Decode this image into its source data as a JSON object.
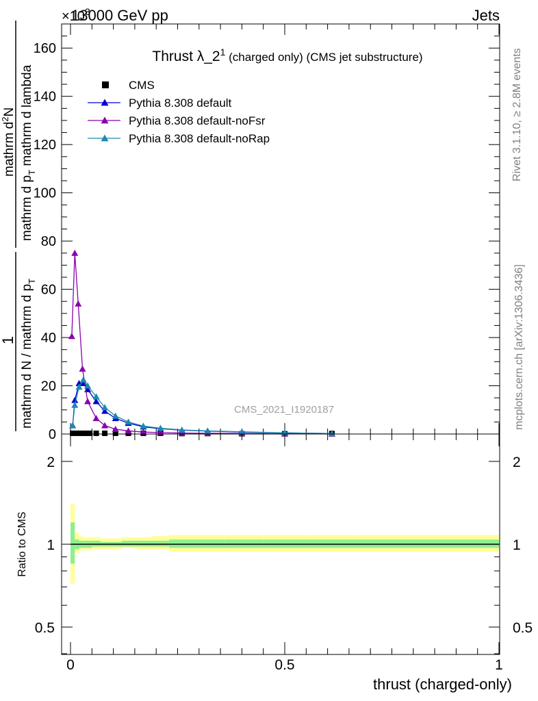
{
  "header": {
    "energy": "13000 GeV pp",
    "process": "Jets",
    "exponent": "×10",
    "exponent_power": "3"
  },
  "side_texts": {
    "rivet": "Rivet 3.1.10, ≥ 2.8M events",
    "mcplots": "mcplots.cern.ch [arXiv:1306.3436]"
  },
  "analysis_id": "CMS_2021_I1920187",
  "colors": {
    "data": "#000000",
    "default": "#0000cc",
    "noFsr": "#8a00b0",
    "noRap": "#1a8ab0",
    "band_inner": "#90ee90",
    "band_outer": "#ffff99"
  },
  "chart_data": [
    {
      "type": "line",
      "title_main": "Thrust λ_2",
      "title_sup": "1",
      "title_rest": " (charged only) (CMS jet substructure)",
      "ylabel": {
        "prefix": "1",
        "denominator": "mathrm d N / mathrm d p",
        "denominator_sub": "T",
        "numerator": "mathrm d",
        "numerator_sup": "2",
        "numerator_tail": "N",
        "lower": "mathrm d p",
        "lower_sub": "T",
        "lower_tail": " mathrm d lambda"
      },
      "y_scale": "×10^3",
      "xlim": [
        0,
        1
      ],
      "ylim": [
        0,
        170
      ],
      "y_ticks": [
        0,
        20,
        40,
        60,
        80,
        100,
        120,
        140,
        160
      ],
      "legend_position": "top-left",
      "series": [
        {
          "name": "CMS",
          "marker": "square",
          "color": "#000000",
          "x": [
            0.005,
            0.015,
            0.025,
            0.035,
            0.045,
            0.06,
            0.08,
            0.105,
            0.135,
            0.17,
            0.21,
            0.26,
            0.32,
            0.4,
            0.5,
            0.61
          ],
          "y": [
            0.3,
            0.3,
            0.3,
            0.3,
            0.3,
            0.3,
            0.3,
            0.3,
            0.3,
            0.3,
            0.3,
            0.2,
            0.2,
            0.1,
            0.1,
            0.2
          ]
        },
        {
          "name": "Pythia 8.308 default",
          "marker": "triangle",
          "color": "#0000cc",
          "x": [
            0.005,
            0.01,
            0.02,
            0.03,
            0.04,
            0.06,
            0.08,
            0.105,
            0.135,
            0.17,
            0.21,
            0.26,
            0.32,
            0.4,
            0.5,
            0.61
          ],
          "y": [
            3.5,
            14,
            21,
            21,
            18.5,
            13.5,
            9.5,
            6.5,
            4.5,
            3,
            2.2,
            1.6,
            1.2,
            0.8,
            0.5,
            0.2
          ]
        },
        {
          "name": "Pythia 8.308 default-noFsr",
          "marker": "triangle",
          "color": "#8a00b0",
          "x": [
            0.003,
            0.01,
            0.018,
            0.028,
            0.04,
            0.06,
            0.08,
            0.105,
            0.135,
            0.17,
            0.21,
            0.26,
            0.32,
            0.4,
            0.5,
            0.61
          ],
          "y": [
            40.5,
            75,
            54,
            27,
            13.5,
            6.5,
            3.5,
            2,
            1.3,
            0.8,
            0.6,
            0.4,
            0.3,
            0.2,
            0.1,
            0.05
          ]
        },
        {
          "name": "Pythia 8.308 default-noRap",
          "marker": "triangle",
          "color": "#1a8ab0",
          "x": [
            0.005,
            0.01,
            0.02,
            0.03,
            0.04,
            0.06,
            0.08,
            0.105,
            0.135,
            0.17,
            0.21,
            0.26,
            0.32,
            0.4,
            0.5,
            0.61
          ],
          "y": [
            3.5,
            12,
            19.5,
            22.5,
            20,
            15.5,
            11,
            7.5,
            5,
            3.3,
            2.4,
            1.7,
            1.3,
            0.9,
            0.5,
            0.2
          ]
        }
      ]
    },
    {
      "type": "area",
      "ylabel": "Ratio to CMS",
      "xlabel": "thrust (charged-only)",
      "xlim": [
        0,
        1
      ],
      "ylim": [
        0.35,
        2.35
      ],
      "y_ticks": [
        0.5,
        1,
        2
      ],
      "y_tick_labels": [
        "0.5",
        "1",
        "2"
      ],
      "x_ticks": [
        0,
        0.5,
        1
      ],
      "x_tick_labels": [
        "0",
        "0.5",
        "1"
      ],
      "band_edges": [
        0,
        0.01,
        0.02,
        0.03,
        0.05,
        0.07,
        0.09,
        0.12,
        0.15,
        0.19,
        0.23,
        0.29,
        0.36,
        0.45,
        0.55,
        0.66,
        1.0
      ],
      "outer_band": {
        "lo": [
          0.72,
          0.93,
          0.95,
          0.95,
          0.96,
          0.96,
          0.96,
          0.97,
          0.96,
          0.96,
          0.94,
          0.94,
          0.94,
          0.94,
          0.94,
          0.94
        ],
        "hi": [
          1.4,
          1.1,
          1.07,
          1.06,
          1.06,
          1.05,
          1.05,
          1.06,
          1.06,
          1.07,
          1.08,
          1.08,
          1.08,
          1.08,
          1.08,
          1.08
        ]
      },
      "inner_band": {
        "lo": [
          0.85,
          0.96,
          0.97,
          0.97,
          0.98,
          0.98,
          0.98,
          0.98,
          0.98,
          0.98,
          0.97,
          0.97,
          0.97,
          0.97,
          0.97,
          0.97
        ],
        "hi": [
          1.2,
          1.04,
          1.03,
          1.03,
          1.03,
          1.02,
          1.02,
          1.03,
          1.03,
          1.03,
          1.04,
          1.04,
          1.04,
          1.04,
          1.04,
          1.04
        ]
      },
      "reference": 1
    }
  ]
}
